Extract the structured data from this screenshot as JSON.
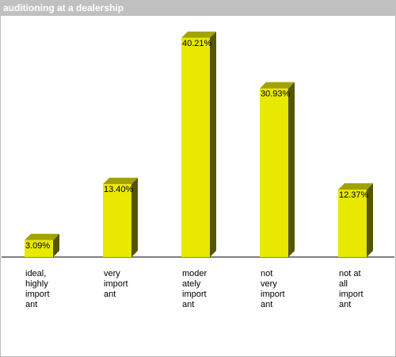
{
  "chart_data": {
    "type": "bar3d",
    "title": "auditioning at a dealership",
    "categories": [
      [
        "ideal,",
        "highly",
        "import",
        "ant"
      ],
      [
        "very",
        "import",
        "ant"
      ],
      [
        "moder",
        "ately",
        "import",
        "ant"
      ],
      [
        "not",
        "very",
        "import",
        "ant"
      ],
      [
        "not at",
        "all",
        "import",
        "ant"
      ]
    ],
    "values": [
      3.09,
      13.4,
      40.21,
      30.93,
      12.37
    ],
    "value_labels": [
      "3.09%",
      "13.40%",
      "40.21%",
      "30.93%",
      "12.37%"
    ],
    "color": "#e8e800",
    "side_color": "#555500",
    "top_color": "#a3a300"
  }
}
